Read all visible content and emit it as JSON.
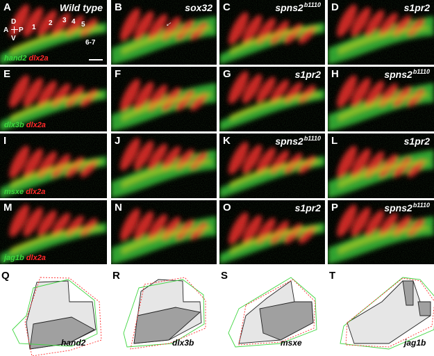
{
  "panels": [
    {
      "id": "A",
      "label": "A",
      "title": "Wild type",
      "title_sup": "",
      "stain_green": "hand2",
      "stain_red": "dlx2a"
    },
    {
      "id": "B",
      "label": "B",
      "title": "sox32",
      "title_sup": ""
    },
    {
      "id": "C",
      "label": "C",
      "title": "spns2",
      "title_sup": "b1110"
    },
    {
      "id": "D",
      "label": "D",
      "title": "s1pr2",
      "title_sup": ""
    },
    {
      "id": "E",
      "label": "E",
      "title": "",
      "title_sup": "",
      "stain_green": "dlx3b",
      "stain_red": "dlx2a"
    },
    {
      "id": "F",
      "label": "F",
      "title": "",
      "title_sup": ""
    },
    {
      "id": "G",
      "label": "G",
      "title": "s1pr2",
      "title_sup": ""
    },
    {
      "id": "H",
      "label": "H",
      "title": "spns2",
      "title_sup": "b1110"
    },
    {
      "id": "I",
      "label": "I",
      "title": "",
      "title_sup": "",
      "stain_green": "msxe",
      "stain_red": "dlx2a"
    },
    {
      "id": "J",
      "label": "J",
      "title": "",
      "title_sup": ""
    },
    {
      "id": "K",
      "label": "K",
      "title": "spns2",
      "title_sup": "b1110"
    },
    {
      "id": "L",
      "label": "L",
      "title": "s1pr2",
      "title_sup": ""
    },
    {
      "id": "M",
      "label": "M",
      "title": "",
      "title_sup": "",
      "stain_green": "jag1b",
      "stain_red": "dlx2a"
    },
    {
      "id": "N",
      "label": "N",
      "title": "",
      "title_sup": ""
    },
    {
      "id": "O",
      "label": "O",
      "title": "s1pr2",
      "title_sup": ""
    },
    {
      "id": "P",
      "label": "P",
      "title": "spns2",
      "title_sup": "b1110"
    }
  ],
  "arch_numbers": [
    "1",
    "2",
    "3",
    "4",
    "5",
    "6-7"
  ],
  "axes": {
    "dorsal": "D",
    "ventral": "V",
    "anterior": "A",
    "posterior": "P"
  },
  "schematics": [
    {
      "id": "Q",
      "label": "Q",
      "gene": "hand2"
    },
    {
      "id": "R",
      "label": "R",
      "gene": "dlx3b"
    },
    {
      "id": "S",
      "label": "S",
      "gene": "msxe"
    },
    {
      "id": "T",
      "label": "T",
      "gene": "jag1b"
    }
  ],
  "colors": {
    "green": "#3dd63d",
    "red": "#ff2a2a",
    "dark_fill": "#a0a0a0",
    "light_fill": "#e6e6e6"
  }
}
